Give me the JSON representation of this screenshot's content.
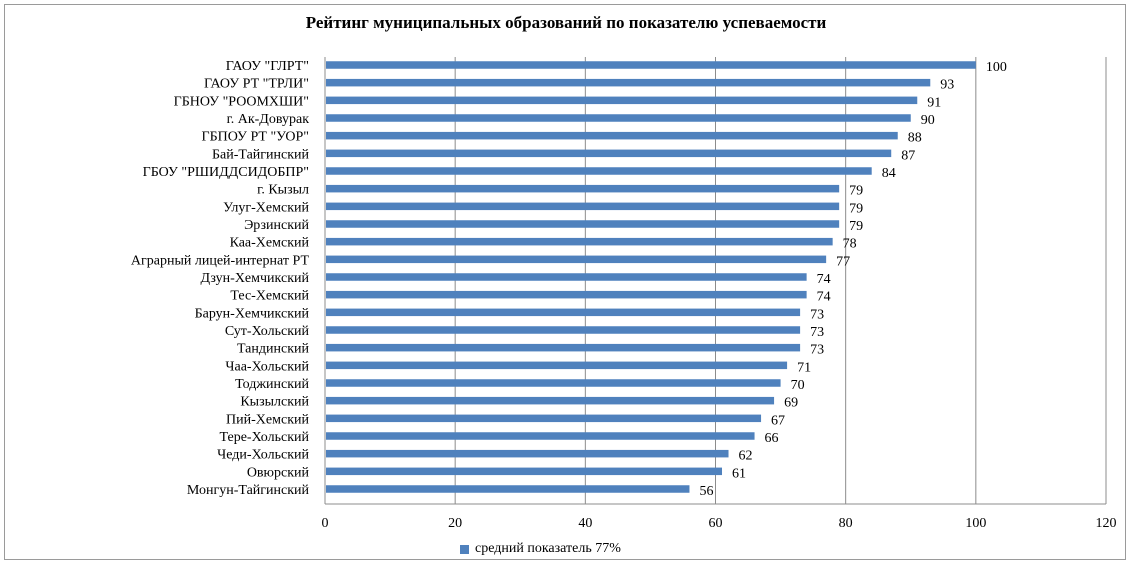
{
  "chart_data": {
    "type": "bar",
    "orientation": "horizontal",
    "title": "Рейтинг муниципальных  образований  по показателю успеваемости",
    "categories": [
      "ГАОУ \"ГЛРТ\"",
      "ГАОУ РТ \"ТРЛИ\"",
      "ГБНОУ \"РООМХШИ\"",
      "г. Ак-Довурак",
      "ГБПОУ РТ \"УОР\"",
      "Бай-Тайгинский",
      "ГБОУ \"РШИДДСИДОБПР\"",
      "г. Кызыл",
      "Улуг-Хемский",
      "Эрзинский",
      "Каа-Хемский",
      "Аграрный лицей-интернат РТ",
      "Дзун-Хемчикский",
      "Тес-Хемский",
      "Барун-Хемчикский",
      "Сут-Хольский",
      "Тандинский",
      "Чаа-Хольский",
      "Тоджинский",
      "Кызылский",
      "Пий-Хемский",
      "Тере-Хольский",
      "Чеди-Хольский",
      "Овюрский",
      "Монгун-Тайгинский"
    ],
    "series": [
      {
        "name": "средний показатель 77%",
        "color": "#4f81bd",
        "values": [
          100,
          93,
          91,
          90,
          88,
          87,
          84,
          79,
          79,
          79,
          78,
          77,
          74,
          74,
          73,
          73,
          73,
          71,
          70,
          69,
          67,
          66,
          62,
          61,
          56
        ]
      }
    ],
    "xlim": [
      0,
      120
    ],
    "xticks": [
      "0",
      "20",
      "40",
      "60",
      "80",
      "100",
      "120"
    ],
    "xtick_values": [
      0,
      20,
      40,
      60,
      80,
      100,
      120
    ],
    "grid": true,
    "legend_position": "bottom"
  }
}
